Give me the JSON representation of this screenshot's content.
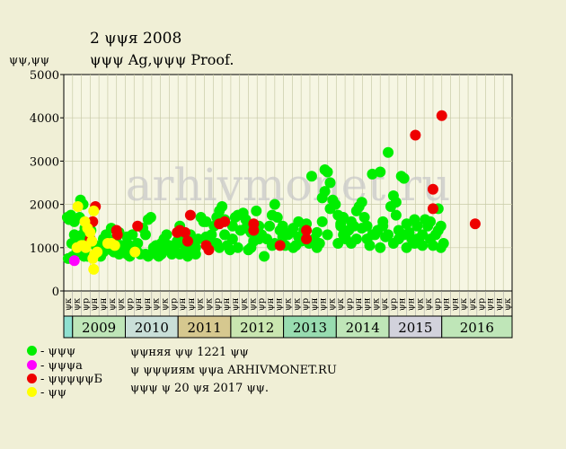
{
  "header": {
    "title": "2 ψψя 2008",
    "subtitle": "ψψψ Ag,ψψψ Proof."
  },
  "colors": {
    "background": "#f0efd6",
    "plot_background": "#f6f6e3",
    "grid": "#c9cba8",
    "series_1": "#00ee00",
    "series_2": "#ff00ff",
    "series_3": "#ee0000",
    "series_4": "#ffff00",
    "watermark": "#c8c8c8"
  },
  "legend": [
    {
      "label": "- ψψψ",
      "color": "#00ee00"
    },
    {
      "label": "- ψψψа",
      "color": "#ff00ff"
    },
    {
      "label": "- ψψψψψБ",
      "color": "#ee0000"
    },
    {
      "label": "- ψψ",
      "color": "#ffff00"
    }
  ],
  "notes": {
    "line1": "ψψняя ψψ 1221 ψψ",
    "line2": "ψ ψψψиям ψψа ARHIVMONET.RU",
    "line3": "ψψψ ψ 20 ψя 2017 ψψ."
  },
  "chart_data": {
    "type": "scatter",
    "ylabel": "ψψ,ψψ",
    "ylim": [
      0,
      5000
    ],
    "yticks": [
      0,
      1000,
      2000,
      3000,
      4000,
      5000
    ],
    "grid": true,
    "watermark": "arhivmonet.ru",
    "x_ticks": [
      "ψк",
      "ψк",
      "ψр",
      "ψн",
      "ψн",
      "ψк",
      "ψк",
      "ψр",
      "ψн",
      "ψн",
      "ψк",
      "ψк",
      "ψр",
      "ψн",
      "ψн",
      "ψк",
      "ψк",
      "ψр",
      "ψн",
      "ψн",
      "ψк",
      "ψк",
      "ψр",
      "ψн",
      "ψн",
      "ψк",
      "ψк",
      "ψр",
      "ψн",
      "ψн",
      "ψк",
      "ψк",
      "ψр",
      "ψн",
      "ψн",
      "ψк",
      "ψк",
      "ψр",
      "ψн",
      "ψн",
      "ψк",
      "ψк",
      "ψр",
      "ψн",
      "ψн",
      "ψк",
      "ψк",
      "ψр",
      "ψн",
      "ψн",
      "ψк"
    ],
    "years": [
      {
        "label": "",
        "color": "#8fe0d0"
      },
      {
        "label": "2009",
        "color": "#bfe6b8"
      },
      {
        "label": "2010",
        "color": "#c9dfd8"
      },
      {
        "label": "2011",
        "color": "#d6c88f"
      },
      {
        "label": "2012",
        "color": "#c9e6b0"
      },
      {
        "label": "2013",
        "color": "#98dcb0"
      },
      {
        "label": "2014",
        "color": "#bfe6b8"
      },
      {
        "label": "2015",
        "color": "#d2d2dc"
      },
      {
        "label": "2016",
        "color": "#bfe6b8"
      }
    ],
    "series": [
      {
        "color": "#00ee00",
        "points": [
          [
            0.4,
            1700
          ],
          [
            0.8,
            1750
          ],
          [
            0.6,
            1650
          ],
          [
            1.0,
            1700
          ],
          [
            1.2,
            1600
          ],
          [
            0.5,
            750
          ],
          [
            0.9,
            1100
          ],
          [
            1.6,
            1200
          ],
          [
            1.9,
            2100
          ],
          [
            2.2,
            2000
          ],
          [
            1.8,
            1700
          ],
          [
            2.4,
            1450
          ],
          [
            2.1,
            1300
          ],
          [
            2.6,
            1200
          ],
          [
            2.9,
            1550
          ],
          [
            3.1,
            1400
          ],
          [
            1.5,
            950
          ],
          [
            1.9,
            900
          ],
          [
            2.3,
            800
          ],
          [
            2.7,
            800
          ],
          [
            3.3,
            1100
          ],
          [
            3.6,
            1050
          ],
          [
            3.9,
            950
          ],
          [
            4.2,
            1000
          ],
          [
            4.5,
            1200
          ],
          [
            4.8,
            1300
          ],
          [
            5.1,
            1100
          ],
          [
            5.4,
            950
          ],
          [
            5.7,
            900
          ],
          [
            6.0,
            1250
          ],
          [
            6.3,
            1350
          ],
          [
            6.6,
            1050
          ],
          [
            6.9,
            900
          ],
          [
            7.2,
            850
          ],
          [
            7.5,
            800
          ],
          [
            7.8,
            1300
          ],
          [
            8.1,
            1000
          ],
          [
            8.4,
            900
          ],
          [
            8.7,
            850
          ],
          [
            9.0,
            1450
          ],
          [
            9.3,
            1300
          ],
          [
            9.6,
            1650
          ],
          [
            9.9,
            1700
          ],
          [
            10.2,
            1000
          ],
          [
            10.5,
            850
          ],
          [
            10.8,
            800
          ],
          [
            11.1,
            1100
          ],
          [
            11.4,
            1200
          ],
          [
            11.7,
            1300
          ],
          [
            12.0,
            1050
          ],
          [
            12.3,
            850
          ],
          [
            12.6,
            1000
          ],
          [
            12.9,
            1150
          ],
          [
            13.2,
            1500
          ],
          [
            13.5,
            1100
          ],
          [
            13.8,
            950
          ],
          [
            14.1,
            800
          ],
          [
            14.4,
            1300
          ],
          [
            14.7,
            1000
          ],
          [
            15.0,
            850
          ],
          [
            15.3,
            1200
          ],
          [
            15.6,
            1700
          ],
          [
            15.9,
            1600
          ],
          [
            16.2,
            1250
          ],
          [
            16.5,
            1100
          ],
          [
            16.8,
            1300
          ],
          [
            17.1,
            1500
          ],
          [
            17.4,
            1700
          ],
          [
            17.7,
            1850
          ],
          [
            18.0,
            1950
          ],
          [
            18.3,
            1300
          ],
          [
            18.6,
            1050
          ],
          [
            18.9,
            950
          ],
          [
            19.2,
            1200
          ],
          [
            19.5,
            1700
          ],
          [
            19.8,
            1750
          ],
          [
            20.1,
            1400
          ],
          [
            20.4,
            1800
          ],
          [
            20.7,
            1650
          ],
          [
            21.0,
            950
          ],
          [
            21.3,
            1350
          ],
          [
            21.6,
            1150
          ],
          [
            21.9,
            1850
          ],
          [
            22.2,
            1500
          ],
          [
            22.5,
            1300
          ],
          [
            22.8,
            800
          ],
          [
            23.1,
            1200
          ],
          [
            23.4,
            1500
          ],
          [
            23.7,
            1750
          ],
          [
            24.0,
            2000
          ],
          [
            24.3,
            1700
          ],
          [
            24.6,
            1400
          ],
          [
            24.9,
            1250
          ],
          [
            25.2,
            1050
          ],
          [
            25.5,
            1300
          ],
          [
            25.8,
            1350
          ],
          [
            26.1,
            1450
          ],
          [
            26.4,
            1050
          ],
          [
            26.7,
            1250
          ],
          [
            27.0,
            1150
          ],
          [
            27.3,
            1400
          ],
          [
            27.6,
            1200
          ],
          [
            27.9,
            1100
          ],
          [
            28.2,
            2650
          ],
          [
            28.5,
            1200
          ],
          [
            28.8,
            1350
          ],
          [
            29.1,
            1100
          ],
          [
            29.4,
            2150
          ],
          [
            29.7,
            2300
          ],
          [
            30.0,
            2750
          ],
          [
            30.3,
            1900
          ],
          [
            30.6,
            2100
          ],
          [
            30.9,
            2000
          ],
          [
            31.2,
            1750
          ],
          [
            31.5,
            1550
          ],
          [
            31.8,
            1300
          ],
          [
            32.1,
            1200
          ],
          [
            32.4,
            1400
          ],
          [
            32.7,
            1600
          ],
          [
            33.0,
            1500
          ],
          [
            33.3,
            1850
          ],
          [
            33.6,
            1950
          ],
          [
            33.9,
            2050
          ],
          [
            34.2,
            1700
          ],
          [
            34.5,
            1200
          ],
          [
            34.8,
            1050
          ],
          [
            35.1,
            2700
          ],
          [
            35.4,
            1300
          ],
          [
            35.7,
            1400
          ],
          [
            36.0,
            2750
          ],
          [
            36.3,
            1500
          ],
          [
            36.6,
            1250
          ],
          [
            36.9,
            3200
          ],
          [
            37.2,
            1950
          ],
          [
            37.5,
            2200
          ],
          [
            37.8,
            1750
          ],
          [
            38.1,
            1400
          ],
          [
            38.4,
            2650
          ],
          [
            38.7,
            1300
          ],
          [
            39.0,
            1550
          ],
          [
            39.3,
            1350
          ],
          [
            39.6,
            1200
          ],
          [
            39.9,
            1650
          ],
          [
            40.2,
            1500
          ],
          [
            40.5,
            1100
          ],
          [
            40.8,
            1300
          ],
          [
            41.1,
            1650
          ],
          [
            41.4,
            1500
          ],
          [
            41.7,
            1200
          ],
          [
            42.0,
            1050
          ],
          [
            42.3,
            1300
          ],
          [
            42.6,
            1900
          ],
          [
            42.9,
            1500
          ],
          [
            29.7,
            2800
          ],
          [
            30.3,
            2500
          ],
          [
            31.5,
            1500
          ],
          [
            33.9,
            1450
          ],
          [
            36.3,
            1600
          ],
          [
            37.8,
            2050
          ],
          [
            38.7,
            2600
          ],
          [
            39.9,
            1100
          ],
          [
            41.7,
            1600
          ],
          [
            24.9,
            1500
          ],
          [
            22.2,
            1200
          ],
          [
            20.7,
            1450
          ],
          [
            18.3,
            1650
          ],
          [
            16.2,
            1600
          ],
          [
            13.2,
            850
          ],
          [
            11.1,
            850
          ],
          [
            9.6,
            800
          ],
          [
            7.2,
            1250
          ],
          [
            5.4,
            1450
          ],
          [
            3.6,
            850
          ],
          [
            2.4,
            1000
          ],
          [
            1.2,
            1300
          ],
          [
            30.0,
            1300
          ],
          [
            32.7,
            1100
          ],
          [
            35.1,
            1300
          ],
          [
            37.5,
            1100
          ],
          [
            40.2,
            1200
          ],
          [
            42.6,
            1400
          ],
          [
            27.6,
            1550
          ],
          [
            26.1,
            1000
          ],
          [
            23.7,
            1050
          ],
          [
            21.3,
            1000
          ],
          [
            19.2,
            1500
          ],
          [
            17.4,
            1100
          ],
          [
            14.7,
            1200
          ],
          [
            12.6,
            900
          ],
          [
            10.5,
            1050
          ],
          [
            8.4,
            1100
          ],
          [
            6.3,
            850
          ],
          [
            4.2,
            800
          ],
          [
            3.0,
            1200
          ],
          [
            1.8,
            1000
          ],
          [
            1.0,
            800
          ],
          [
            28.8,
            1000
          ],
          [
            31.2,
            1100
          ],
          [
            33.3,
            1200
          ],
          [
            36.0,
            1000
          ],
          [
            38.1,
            1200
          ],
          [
            40.8,
            1050
          ],
          [
            43.2,
            1100
          ],
          [
            42.9,
            1000
          ],
          [
            39.0,
            1000
          ],
          [
            36.9,
            1300
          ],
          [
            34.5,
            1500
          ],
          [
            31.8,
            1700
          ],
          [
            29.4,
            1600
          ],
          [
            26.7,
            1600
          ],
          [
            24.0,
            1100
          ],
          [
            21.6,
            1500
          ],
          [
            19.8,
            1000
          ],
          [
            17.7,
            1000
          ],
          [
            15.0,
            1000
          ],
          [
            13.5,
            1200
          ],
          [
            11.4,
            950
          ],
          [
            9.3,
            850
          ],
          [
            7.5,
            1050
          ],
          [
            5.7,
            1150
          ],
          [
            4.5,
            900
          ],
          [
            2.7,
            1100
          ]
        ]
      },
      {
        "color": "#ff00ff",
        "points": [
          [
            1.2,
            700
          ]
        ]
      },
      {
        "color": "#ee0000",
        "points": [
          [
            3.0,
            1200
          ],
          [
            3.3,
            1600
          ],
          [
            3.6,
            1950
          ],
          [
            6.0,
            1400
          ],
          [
            6.1,
            1300
          ],
          [
            8.4,
            1500
          ],
          [
            12.9,
            1350
          ],
          [
            13.2,
            1400
          ],
          [
            13.8,
            1350
          ],
          [
            14.1,
            1150
          ],
          [
            14.4,
            1750
          ],
          [
            16.2,
            1050
          ],
          [
            16.5,
            950
          ],
          [
            17.7,
            1550
          ],
          [
            18.3,
            1600
          ],
          [
            21.6,
            1550
          ],
          [
            21.6,
            1400
          ],
          [
            24.6,
            1050
          ],
          [
            27.6,
            1400
          ],
          [
            27.6,
            1200
          ],
          [
            40.0,
            3600
          ],
          [
            42.0,
            2350
          ],
          [
            42.0,
            1900
          ],
          [
            43.0,
            4050
          ],
          [
            46.8,
            1550
          ]
        ]
      },
      {
        "color": "#ffff00",
        "points": [
          [
            1.6,
            1950
          ],
          [
            2.4,
            1600
          ],
          [
            2.7,
            1450
          ],
          [
            2.2,
            1050
          ],
          [
            2.0,
            1050
          ],
          [
            1.5,
            1000
          ],
          [
            3.0,
            1350
          ],
          [
            3.2,
            1150
          ],
          [
            3.3,
            750
          ],
          [
            3.4,
            500
          ],
          [
            3.8,
            900
          ],
          [
            3.5,
            850
          ],
          [
            5.0,
            1100
          ],
          [
            5.4,
            1100
          ],
          [
            5.8,
            1050
          ],
          [
            8.1,
            900
          ],
          [
            3.4,
            1850
          ],
          [
            2.5,
            1000
          ]
        ]
      }
    ]
  }
}
